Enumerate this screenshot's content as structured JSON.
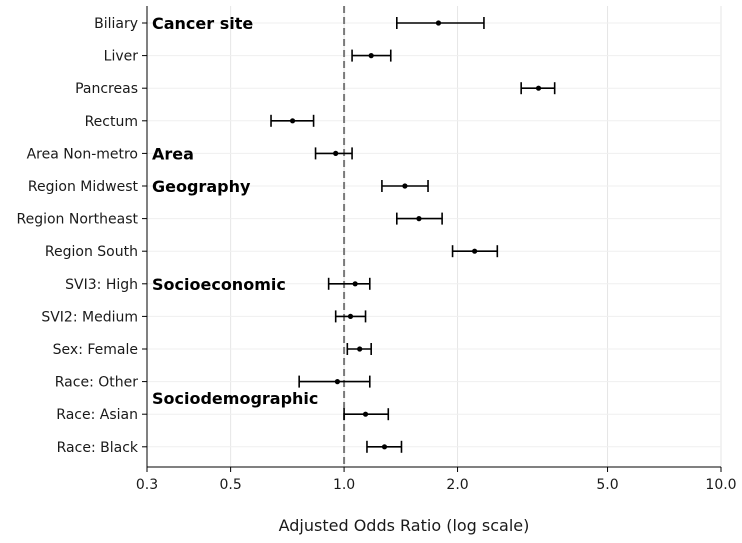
{
  "chart_data": {
    "type": "forest",
    "xlabel": "Adjusted Odds Ratio (log scale)",
    "x_scale": "log",
    "xlim": [
      0.3,
      10.0
    ],
    "x_ticks": [
      0.3,
      0.5,
      1.0,
      2.0,
      5.0,
      10.0
    ],
    "x_tick_labels": [
      "0.3",
      "0.5",
      "1.0",
      "2.0",
      "5.0",
      "10.0"
    ],
    "reference_line": 1.0,
    "grid": true,
    "rows": [
      {
        "label": "Biliary",
        "or": 1.78,
        "lo": 1.38,
        "hi": 2.35
      },
      {
        "label": "Liver",
        "or": 1.18,
        "lo": 1.05,
        "hi": 1.33
      },
      {
        "label": "Pancreas",
        "or": 3.28,
        "lo": 2.95,
        "hi": 3.62
      },
      {
        "label": "Rectum",
        "or": 0.73,
        "lo": 0.64,
        "hi": 0.83
      },
      {
        "label": "Area Non-metro",
        "or": 0.95,
        "lo": 0.84,
        "hi": 1.05
      },
      {
        "label": "Region Midwest",
        "or": 1.45,
        "lo": 1.26,
        "hi": 1.67
      },
      {
        "label": "Region Northeast",
        "or": 1.58,
        "lo": 1.38,
        "hi": 1.82
      },
      {
        "label": "Region South",
        "or": 2.22,
        "lo": 1.94,
        "hi": 2.55
      },
      {
        "label": "SVI3: High",
        "or": 1.07,
        "lo": 0.91,
        "hi": 1.17
      },
      {
        "label": "SVI2: Medium",
        "or": 1.04,
        "lo": 0.95,
        "hi": 1.14
      },
      {
        "label": "Sex: Female",
        "or": 1.1,
        "lo": 1.02,
        "hi": 1.18
      },
      {
        "label": "Race: Other",
        "or": 0.96,
        "lo": 0.76,
        "hi": 1.17
      },
      {
        "label": "Race: Asian",
        "or": 1.14,
        "lo": 1.0,
        "hi": 1.31
      },
      {
        "label": "Race: Black",
        "or": 1.28,
        "lo": 1.15,
        "hi": 1.42
      }
    ],
    "groups": [
      {
        "label": "Cancer site",
        "row": 0
      },
      {
        "label": "Area",
        "row": 4
      },
      {
        "label": "Geography",
        "row": 5
      },
      {
        "label": "Socioeconomic",
        "row": 8
      },
      {
        "label": "Sociodemographic",
        "row": 11.5
      }
    ],
    "colors": {
      "marker": "#000000",
      "reference_line": "#7a7a7a",
      "grid": "#e6e6e6",
      "axis": "#000000"
    }
  }
}
